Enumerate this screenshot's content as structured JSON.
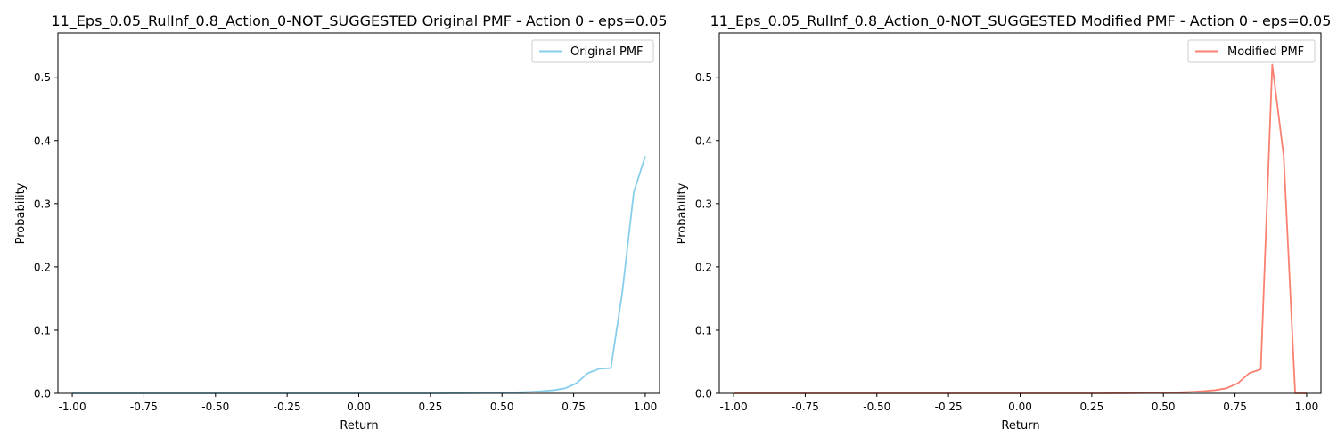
{
  "chart_data": [
    {
      "type": "line",
      "title": "11_Eps_0.05_RulInf_0.8_Action_0-NOT_SUGGESTED Original PMF - Action 0 - eps=0.05",
      "xlabel": "Return",
      "ylabel": "Probability",
      "xlim": [
        -1.05,
        1.05
      ],
      "ylim": [
        0,
        0.57
      ],
      "xticks": [
        "-1.00",
        "-0.75",
        "-0.50",
        "-0.25",
        "0.00",
        "0.25",
        "0.50",
        "0.75",
        "1.00"
      ],
      "xtick_values": [
        -1.0,
        -0.75,
        -0.5,
        -0.25,
        0.0,
        0.25,
        0.5,
        0.75,
        1.0
      ],
      "yticks": [
        "0.0",
        "0.1",
        "0.2",
        "0.3",
        "0.4",
        "0.5"
      ],
      "ytick_values": [
        0.0,
        0.1,
        0.2,
        0.3,
        0.4,
        0.5
      ],
      "legend_position": "top-right",
      "grid": false,
      "series": [
        {
          "name": "Original PMF",
          "color": "#87ceeb",
          "x": [
            -1.0,
            -0.96,
            -0.92,
            -0.88,
            -0.84,
            -0.8,
            -0.76,
            -0.72,
            -0.68,
            -0.64,
            -0.6,
            -0.56,
            -0.52,
            -0.48,
            -0.44,
            -0.4,
            -0.36,
            -0.32,
            -0.28,
            -0.24,
            -0.2,
            -0.16,
            -0.12,
            -0.08,
            -0.04,
            0.0,
            0.04,
            0.08,
            0.12,
            0.16,
            0.2,
            0.24,
            0.28,
            0.32,
            0.36,
            0.4,
            0.44,
            0.48,
            0.52,
            0.56,
            0.6,
            0.64,
            0.68,
            0.72,
            0.76,
            0.8,
            0.84,
            0.88,
            0.92,
            0.96,
            1.0
          ],
          "y": [
            0,
            0,
            0,
            0,
            0,
            0,
            0,
            0,
            0,
            0,
            0,
            0,
            0,
            0,
            0,
            0,
            0,
            0,
            0,
            0,
            0,
            0,
            0,
            0,
            0,
            0,
            0,
            0,
            0,
            0,
            0,
            0,
            0,
            0.0002,
            0.0003,
            0.0004,
            0.0005,
            0.0008,
            0.0012,
            0.0018,
            0.0025,
            0.0035,
            0.005,
            0.008,
            0.016,
            0.032,
            0.039,
            0.04,
            0.16,
            0.318,
            0.375
          ]
        }
      ]
    },
    {
      "type": "line",
      "title": "11_Eps_0.05_RulInf_0.8_Action_0-NOT_SUGGESTED Modified PMF - Action 0 - eps=0.05",
      "xlabel": "Return",
      "ylabel": "Probability",
      "xlim": [
        -1.05,
        1.05
      ],
      "ylim": [
        0,
        0.57
      ],
      "xticks": [
        "-1.00",
        "-0.75",
        "-0.50",
        "-0.25",
        "0.00",
        "0.25",
        "0.50",
        "0.75",
        "1.00"
      ],
      "xtick_values": [
        -1.0,
        -0.75,
        -0.5,
        -0.25,
        0.0,
        0.25,
        0.5,
        0.75,
        1.0
      ],
      "yticks": [
        "0.0",
        "0.1",
        "0.2",
        "0.3",
        "0.4",
        "0.5"
      ],
      "ytick_values": [
        0.0,
        0.1,
        0.2,
        0.3,
        0.4,
        0.5
      ],
      "legend_position": "top-right",
      "grid": false,
      "series": [
        {
          "name": "Modified PMF",
          "color": "#fa8072",
          "x": [
            -1.0,
            -0.96,
            -0.92,
            -0.88,
            -0.84,
            -0.8,
            -0.76,
            -0.72,
            -0.68,
            -0.64,
            -0.6,
            -0.56,
            -0.52,
            -0.48,
            -0.44,
            -0.4,
            -0.36,
            -0.32,
            -0.28,
            -0.24,
            -0.2,
            -0.16,
            -0.12,
            -0.08,
            -0.04,
            0.0,
            0.04,
            0.08,
            0.12,
            0.16,
            0.2,
            0.24,
            0.28,
            0.32,
            0.36,
            0.4,
            0.44,
            0.48,
            0.52,
            0.56,
            0.6,
            0.64,
            0.68,
            0.72,
            0.76,
            0.8,
            0.84,
            0.88,
            0.92,
            0.96,
            1.0
          ],
          "y": [
            0,
            0,
            0,
            0,
            0,
            0,
            0,
            0,
            0,
            0,
            0,
            0,
            0,
            0,
            0,
            0,
            0,
            0,
            0,
            0,
            0,
            0,
            0,
            0,
            0,
            0,
            0,
            0,
            0,
            0,
            0,
            0,
            0,
            0.0002,
            0.0003,
            0.0004,
            0.0005,
            0.0008,
            0.0012,
            0.0018,
            0.0025,
            0.0035,
            0.005,
            0.008,
            0.016,
            0.032,
            0.038,
            0.52,
            0.375,
            0,
            0
          ]
        }
      ]
    }
  ]
}
